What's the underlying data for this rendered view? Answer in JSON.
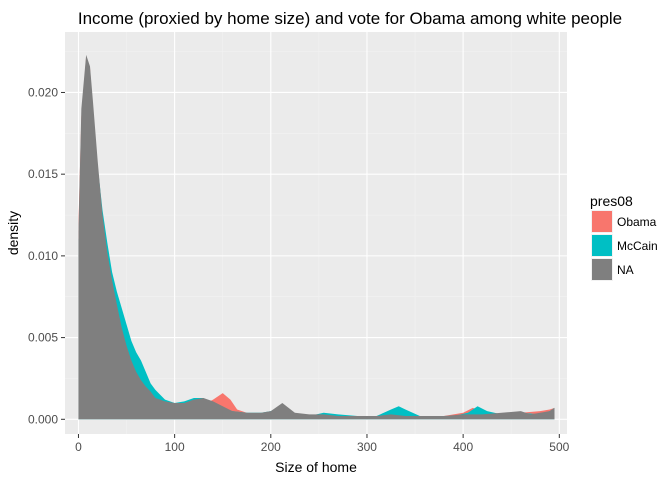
{
  "chart_data": {
    "type": "area",
    "subtype": "density",
    "title": "Income (proxied by home size) and vote for Obama among white people",
    "xlabel": "Size of home",
    "ylabel": "density",
    "xlim": [
      -14,
      508
    ],
    "ylim": [
      -0.0009,
      0.0237
    ],
    "x_ticks": [
      0,
      100,
      200,
      300,
      400,
      500
    ],
    "y_ticks": [
      0.0,
      0.005,
      0.01,
      0.015,
      0.02
    ],
    "x_tick_labels": [
      "0",
      "100",
      "200",
      "300",
      "400",
      "500"
    ],
    "y_tick_labels": [
      "0.000",
      "0.005",
      "0.010",
      "0.015",
      "0.020"
    ],
    "grid": true,
    "legend": {
      "title": "pres08",
      "position": "right",
      "entries": [
        {
          "label": "Obama",
          "color": "#F8766D"
        },
        {
          "label": "McCain",
          "color": "#00BFC4"
        },
        {
          "label": "NA",
          "color": "#7F7F7F"
        }
      ]
    },
    "series": [
      {
        "name": "Obama",
        "color": "#F8766D",
        "points": [
          [
            0,
            0.012
          ],
          [
            3,
            0.0185
          ],
          [
            8,
            0.0222
          ],
          [
            12,
            0.0215
          ],
          [
            15,
            0.019
          ],
          [
            20,
            0.0152
          ],
          [
            25,
            0.0122
          ],
          [
            30,
            0.01
          ],
          [
            35,
            0.0082
          ],
          [
            40,
            0.0068
          ],
          [
            45,
            0.0055
          ],
          [
            50,
            0.0042
          ],
          [
            55,
            0.0032
          ],
          [
            60,
            0.0025
          ],
          [
            65,
            0.002
          ],
          [
            70,
            0.0016
          ],
          [
            75,
            0.0012
          ],
          [
            80,
            0.001
          ],
          [
            90,
            0.0007
          ],
          [
            100,
            0.0006
          ],
          [
            110,
            0.0007
          ],
          [
            120,
            0.0008
          ],
          [
            130,
            0.0009
          ],
          [
            140,
            0.0012
          ],
          [
            150,
            0.0016
          ],
          [
            158,
            0.0012
          ],
          [
            165,
            0.0006
          ],
          [
            175,
            0.0004
          ],
          [
            190,
            0.0003
          ],
          [
            200,
            0.0003
          ],
          [
            210,
            0.0007
          ],
          [
            220,
            0.0003
          ],
          [
            240,
            0.0002
          ],
          [
            260,
            0.0002
          ],
          [
            280,
            0.0002
          ],
          [
            300,
            0.0002
          ],
          [
            320,
            0.0002
          ],
          [
            340,
            0.0002
          ],
          [
            360,
            0.0001
          ],
          [
            380,
            0.0002
          ],
          [
            400,
            0.0004
          ],
          [
            410,
            0.0007
          ],
          [
            420,
            0.0005
          ],
          [
            440,
            0.0003
          ],
          [
            460,
            0.0004
          ],
          [
            480,
            0.0005
          ],
          [
            490,
            0.0006
          ],
          [
            495,
            0.0007
          ]
        ]
      },
      {
        "name": "McCain",
        "color": "#00BFC4",
        "points": [
          [
            0,
            0.011
          ],
          [
            3,
            0.0178
          ],
          [
            8,
            0.0216
          ],
          [
            12,
            0.021
          ],
          [
            15,
            0.0188
          ],
          [
            20,
            0.0155
          ],
          [
            25,
            0.0128
          ],
          [
            30,
            0.0108
          ],
          [
            35,
            0.009
          ],
          [
            40,
            0.0078
          ],
          [
            45,
            0.0068
          ],
          [
            50,
            0.0058
          ],
          [
            55,
            0.0048
          ],
          [
            60,
            0.0041
          ],
          [
            65,
            0.0036
          ],
          [
            70,
            0.0029
          ],
          [
            75,
            0.0022
          ],
          [
            80,
            0.0018
          ],
          [
            90,
            0.0012
          ],
          [
            100,
            0.001
          ],
          [
            110,
            0.0011
          ],
          [
            120,
            0.0013
          ],
          [
            130,
            0.0013
          ],
          [
            140,
            0.001
          ],
          [
            150,
            0.0007
          ],
          [
            160,
            0.0005
          ],
          [
            175,
            0.0004
          ],
          [
            190,
            0.0004
          ],
          [
            200,
            0.0005
          ],
          [
            212,
            0.0009
          ],
          [
            225,
            0.0003
          ],
          [
            240,
            0.0002
          ],
          [
            255,
            0.0004
          ],
          [
            270,
            0.0003
          ],
          [
            290,
            0.0002
          ],
          [
            310,
            0.0002
          ],
          [
            325,
            0.0006
          ],
          [
            333,
            0.0008
          ],
          [
            340,
            0.0006
          ],
          [
            355,
            0.0002
          ],
          [
            370,
            0.0002
          ],
          [
            390,
            0.0002
          ],
          [
            405,
            0.0004
          ],
          [
            415,
            0.0008
          ],
          [
            425,
            0.0005
          ],
          [
            440,
            0.0003
          ],
          [
            460,
            0.0004
          ],
          [
            480,
            0.0003
          ],
          [
            490,
            0.0005
          ],
          [
            495,
            0.0007
          ]
        ]
      },
      {
        "name": "NA",
        "color": "#7F7F7F",
        "points": [
          [
            0,
            0.0115
          ],
          [
            3,
            0.019
          ],
          [
            8,
            0.0223
          ],
          [
            12,
            0.0216
          ],
          [
            15,
            0.0195
          ],
          [
            20,
            0.0158
          ],
          [
            25,
            0.0125
          ],
          [
            30,
            0.0102
          ],
          [
            35,
            0.0085
          ],
          [
            40,
            0.007
          ],
          [
            45,
            0.0056
          ],
          [
            50,
            0.0045
          ],
          [
            55,
            0.0036
          ],
          [
            60,
            0.0029
          ],
          [
            65,
            0.0024
          ],
          [
            70,
            0.002
          ],
          [
            75,
            0.0017
          ],
          [
            80,
            0.0013
          ],
          [
            90,
            0.0011
          ],
          [
            100,
            0.001
          ],
          [
            110,
            0.001
          ],
          [
            120,
            0.0012
          ],
          [
            130,
            0.0013
          ],
          [
            140,
            0.0011
          ],
          [
            150,
            0.0008
          ],
          [
            160,
            0.0005
          ],
          [
            175,
            0.0004
          ],
          [
            190,
            0.0004
          ],
          [
            200,
            0.0005
          ],
          [
            212,
            0.001
          ],
          [
            225,
            0.0004
          ],
          [
            240,
            0.0003
          ],
          [
            255,
            0.0003
          ],
          [
            270,
            0.0002
          ],
          [
            290,
            0.0002
          ],
          [
            310,
            0.0002
          ],
          [
            325,
            0.0003
          ],
          [
            340,
            0.0002
          ],
          [
            360,
            0.0002
          ],
          [
            380,
            0.0002
          ],
          [
            400,
            0.0003
          ],
          [
            420,
            0.0003
          ],
          [
            440,
            0.0004
          ],
          [
            460,
            0.0005
          ],
          [
            470,
            0.0003
          ],
          [
            480,
            0.0004
          ],
          [
            490,
            0.0005
          ],
          [
            495,
            0.0007
          ]
        ]
      }
    ]
  }
}
